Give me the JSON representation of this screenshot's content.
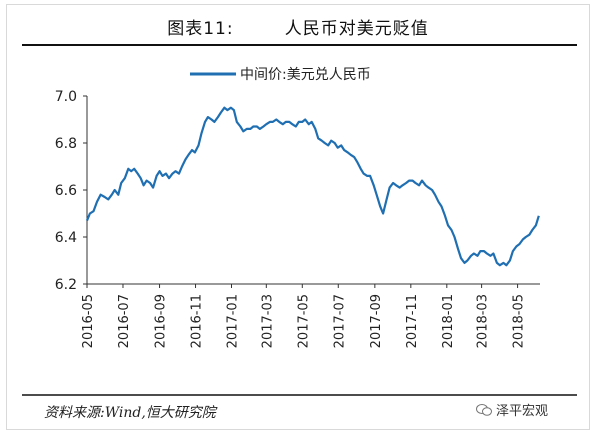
{
  "header": {
    "title": "图表11:        人民币对美元贬值"
  },
  "chart_data": {
    "type": "line",
    "title": "图表11:        人民币对美元贬值",
    "legend": {
      "label": "中间价:美元兑人民币",
      "placement": "top-center"
    },
    "ylim": [
      6.2,
      7.0
    ],
    "yticks": [
      "7.0",
      "6.8",
      "6.6",
      "6.4",
      "6.2"
    ],
    "xticks": [
      "2016-05",
      "2016-07",
      "2016-09",
      "2016-11",
      "2017-01",
      "2017-03",
      "2017-05",
      "2017-07",
      "2017-09",
      "2017-11",
      "2018-01",
      "2018-03",
      "2018-05"
    ],
    "line_color": "#1f6fb2",
    "series": [
      {
        "name": "中间价:美元兑人民币",
        "points": [
          [
            "2016-05-01",
            6.47
          ],
          [
            "2016-05-06",
            6.5
          ],
          [
            "2016-05-12",
            6.51
          ],
          [
            "2016-05-18",
            6.55
          ],
          [
            "2016-05-24",
            6.58
          ],
          [
            "2016-05-31",
            6.57
          ],
          [
            "2016-06-06",
            6.56
          ],
          [
            "2016-06-12",
            6.58
          ],
          [
            "2016-06-17",
            6.6
          ],
          [
            "2016-06-23",
            6.58
          ],
          [
            "2016-06-28",
            6.63
          ],
          [
            "2016-07-04",
            6.65
          ],
          [
            "2016-07-10",
            6.69
          ],
          [
            "2016-07-15",
            6.68
          ],
          [
            "2016-07-20",
            6.69
          ],
          [
            "2016-07-26",
            6.67
          ],
          [
            "2016-07-31",
            6.65
          ],
          [
            "2016-08-05",
            6.62
          ],
          [
            "2016-08-10",
            6.64
          ],
          [
            "2016-08-16",
            6.63
          ],
          [
            "2016-08-21",
            6.61
          ],
          [
            "2016-08-27",
            6.66
          ],
          [
            "2016-09-01",
            6.68
          ],
          [
            "2016-09-06",
            6.66
          ],
          [
            "2016-09-12",
            6.67
          ],
          [
            "2016-09-17",
            6.65
          ],
          [
            "2016-09-23",
            6.67
          ],
          [
            "2016-09-28",
            6.68
          ],
          [
            "2016-10-04",
            6.67
          ],
          [
            "2016-10-09",
            6.7
          ],
          [
            "2016-10-15",
            6.73
          ],
          [
            "2016-10-20",
            6.75
          ],
          [
            "2016-10-26",
            6.77
          ],
          [
            "2016-10-31",
            6.76
          ],
          [
            "2016-11-06",
            6.79
          ],
          [
            "2016-11-11",
            6.84
          ],
          [
            "2016-11-17",
            6.89
          ],
          [
            "2016-11-22",
            6.91
          ],
          [
            "2016-11-28",
            6.9
          ],
          [
            "2016-12-03",
            6.89
          ],
          [
            "2016-12-09",
            6.91
          ],
          [
            "2016-12-14",
            6.93
          ],
          [
            "2016-12-20",
            6.95
          ],
          [
            "2016-12-25",
            6.94
          ],
          [
            "2016-12-31",
            6.95
          ],
          [
            "2017-01-05",
            6.94
          ],
          [
            "2017-01-10",
            6.89
          ],
          [
            "2017-01-16",
            6.87
          ],
          [
            "2017-01-21",
            6.85
          ],
          [
            "2017-01-27",
            6.86
          ],
          [
            "2017-02-02",
            6.86
          ],
          [
            "2017-02-07",
            6.87
          ],
          [
            "2017-02-13",
            6.87
          ],
          [
            "2017-02-18",
            6.86
          ],
          [
            "2017-02-24",
            6.87
          ],
          [
            "2017-03-01",
            6.88
          ],
          [
            "2017-03-07",
            6.89
          ],
          [
            "2017-03-12",
            6.89
          ],
          [
            "2017-03-18",
            6.9
          ],
          [
            "2017-03-23",
            6.89
          ],
          [
            "2017-03-29",
            6.88
          ],
          [
            "2017-04-03",
            6.89
          ],
          [
            "2017-04-09",
            6.89
          ],
          [
            "2017-04-14",
            6.88
          ],
          [
            "2017-04-20",
            6.87
          ],
          [
            "2017-04-25",
            6.89
          ],
          [
            "2017-05-01",
            6.89
          ],
          [
            "2017-05-06",
            6.9
          ],
          [
            "2017-05-12",
            6.88
          ],
          [
            "2017-05-17",
            6.89
          ],
          [
            "2017-05-23",
            6.86
          ],
          [
            "2017-05-28",
            6.82
          ],
          [
            "2017-06-03",
            6.81
          ],
          [
            "2017-06-08",
            6.8
          ],
          [
            "2017-06-14",
            6.79
          ],
          [
            "2017-06-19",
            6.81
          ],
          [
            "2017-06-25",
            6.8
          ],
          [
            "2017-06-30",
            6.78
          ],
          [
            "2017-07-06",
            6.79
          ],
          [
            "2017-07-11",
            6.77
          ],
          [
            "2017-07-17",
            6.76
          ],
          [
            "2017-07-22",
            6.75
          ],
          [
            "2017-07-28",
            6.74
          ],
          [
            "2017-08-02",
            6.72
          ],
          [
            "2017-08-08",
            6.69
          ],
          [
            "2017-08-13",
            6.67
          ],
          [
            "2017-08-19",
            6.66
          ],
          [
            "2017-08-24",
            6.66
          ],
          [
            "2017-08-30",
            6.62
          ],
          [
            "2017-09-04",
            6.58
          ],
          [
            "2017-09-10",
            6.53
          ],
          [
            "2017-09-15",
            6.5
          ],
          [
            "2017-09-21",
            6.56
          ],
          [
            "2017-09-26",
            6.61
          ],
          [
            "2017-10-02",
            6.63
          ],
          [
            "2017-10-07",
            6.62
          ],
          [
            "2017-10-13",
            6.61
          ],
          [
            "2017-10-18",
            6.62
          ],
          [
            "2017-10-24",
            6.63
          ],
          [
            "2017-10-29",
            6.64
          ],
          [
            "2017-11-04",
            6.64
          ],
          [
            "2017-11-09",
            6.63
          ],
          [
            "2017-11-15",
            6.62
          ],
          [
            "2017-11-20",
            6.64
          ],
          [
            "2017-11-26",
            6.62
          ],
          [
            "2017-12-01",
            6.61
          ],
          [
            "2017-12-07",
            6.6
          ],
          [
            "2017-12-12",
            6.58
          ],
          [
            "2017-12-18",
            6.55
          ],
          [
            "2017-12-23",
            6.53
          ],
          [
            "2017-12-29",
            6.49
          ],
          [
            "2018-01-03",
            6.45
          ],
          [
            "2018-01-09",
            6.43
          ],
          [
            "2018-01-14",
            6.4
          ],
          [
            "2018-01-20",
            6.35
          ],
          [
            "2018-01-25",
            6.31
          ],
          [
            "2018-01-31",
            6.29
          ],
          [
            "2018-02-05",
            6.3
          ],
          [
            "2018-02-11",
            6.32
          ],
          [
            "2018-02-16",
            6.33
          ],
          [
            "2018-02-22",
            6.32
          ],
          [
            "2018-02-27",
            6.34
          ],
          [
            "2018-03-05",
            6.34
          ],
          [
            "2018-03-10",
            6.33
          ],
          [
            "2018-03-16",
            6.32
          ],
          [
            "2018-03-21",
            6.33
          ],
          [
            "2018-03-27",
            6.29
          ],
          [
            "2018-04-01",
            6.28
          ],
          [
            "2018-04-07",
            6.29
          ],
          [
            "2018-04-12",
            6.28
          ],
          [
            "2018-04-18",
            6.3
          ],
          [
            "2018-04-23",
            6.34
          ],
          [
            "2018-04-29",
            6.36
          ],
          [
            "2018-05-04",
            6.37
          ],
          [
            "2018-05-10",
            6.39
          ],
          [
            "2018-05-15",
            6.4
          ],
          [
            "2018-05-21",
            6.41
          ],
          [
            "2018-05-26",
            6.43
          ],
          [
            "2018-06-01",
            6.45
          ],
          [
            "2018-06-06",
            6.49
          ]
        ]
      }
    ]
  },
  "footer": {
    "source": "资料来源:Wind,恒大研究院",
    "brand": "泽平宏观"
  }
}
